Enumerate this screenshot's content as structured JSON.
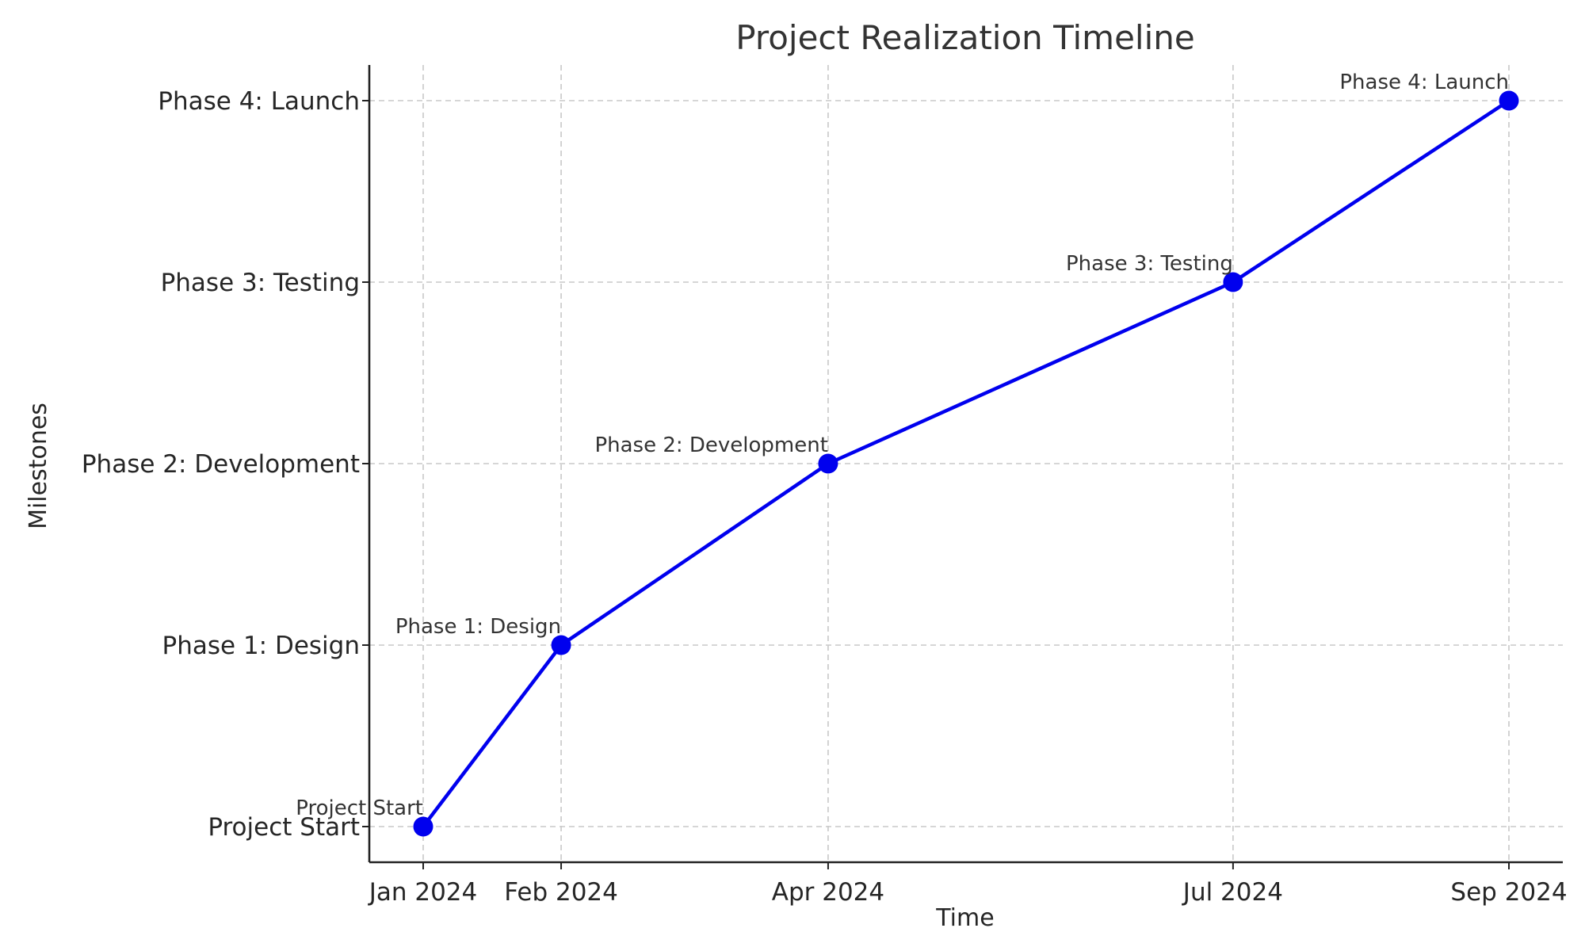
{
  "chart_data": {
    "type": "line",
    "title": "Project Realization Timeline",
    "xlabel": "Time",
    "ylabel": "Milestones",
    "x": [
      "Jan 2024",
      "Feb 2024",
      "Apr 2024",
      "Jul 2024",
      "Sep 2024"
    ],
    "y_categories": [
      "Project Start",
      "Phase 1: Design",
      "Phase 2: Development",
      "Phase 3: Testing",
      "Phase 4: Launch"
    ],
    "series": [
      {
        "values": [
          "Project Start",
          "Phase 1: Design",
          "Phase 2: Development",
          "Phase 3: Testing",
          "Phase 4: Launch"
        ],
        "point_labels": [
          "Project Start",
          "Phase 1: Design",
          "Phase 2: Development",
          "Phase 3: Testing",
          "Phase 4: Launch"
        ],
        "color": "#0000ee",
        "marker": "circle"
      }
    ],
    "grid": true,
    "legend": "none"
  }
}
